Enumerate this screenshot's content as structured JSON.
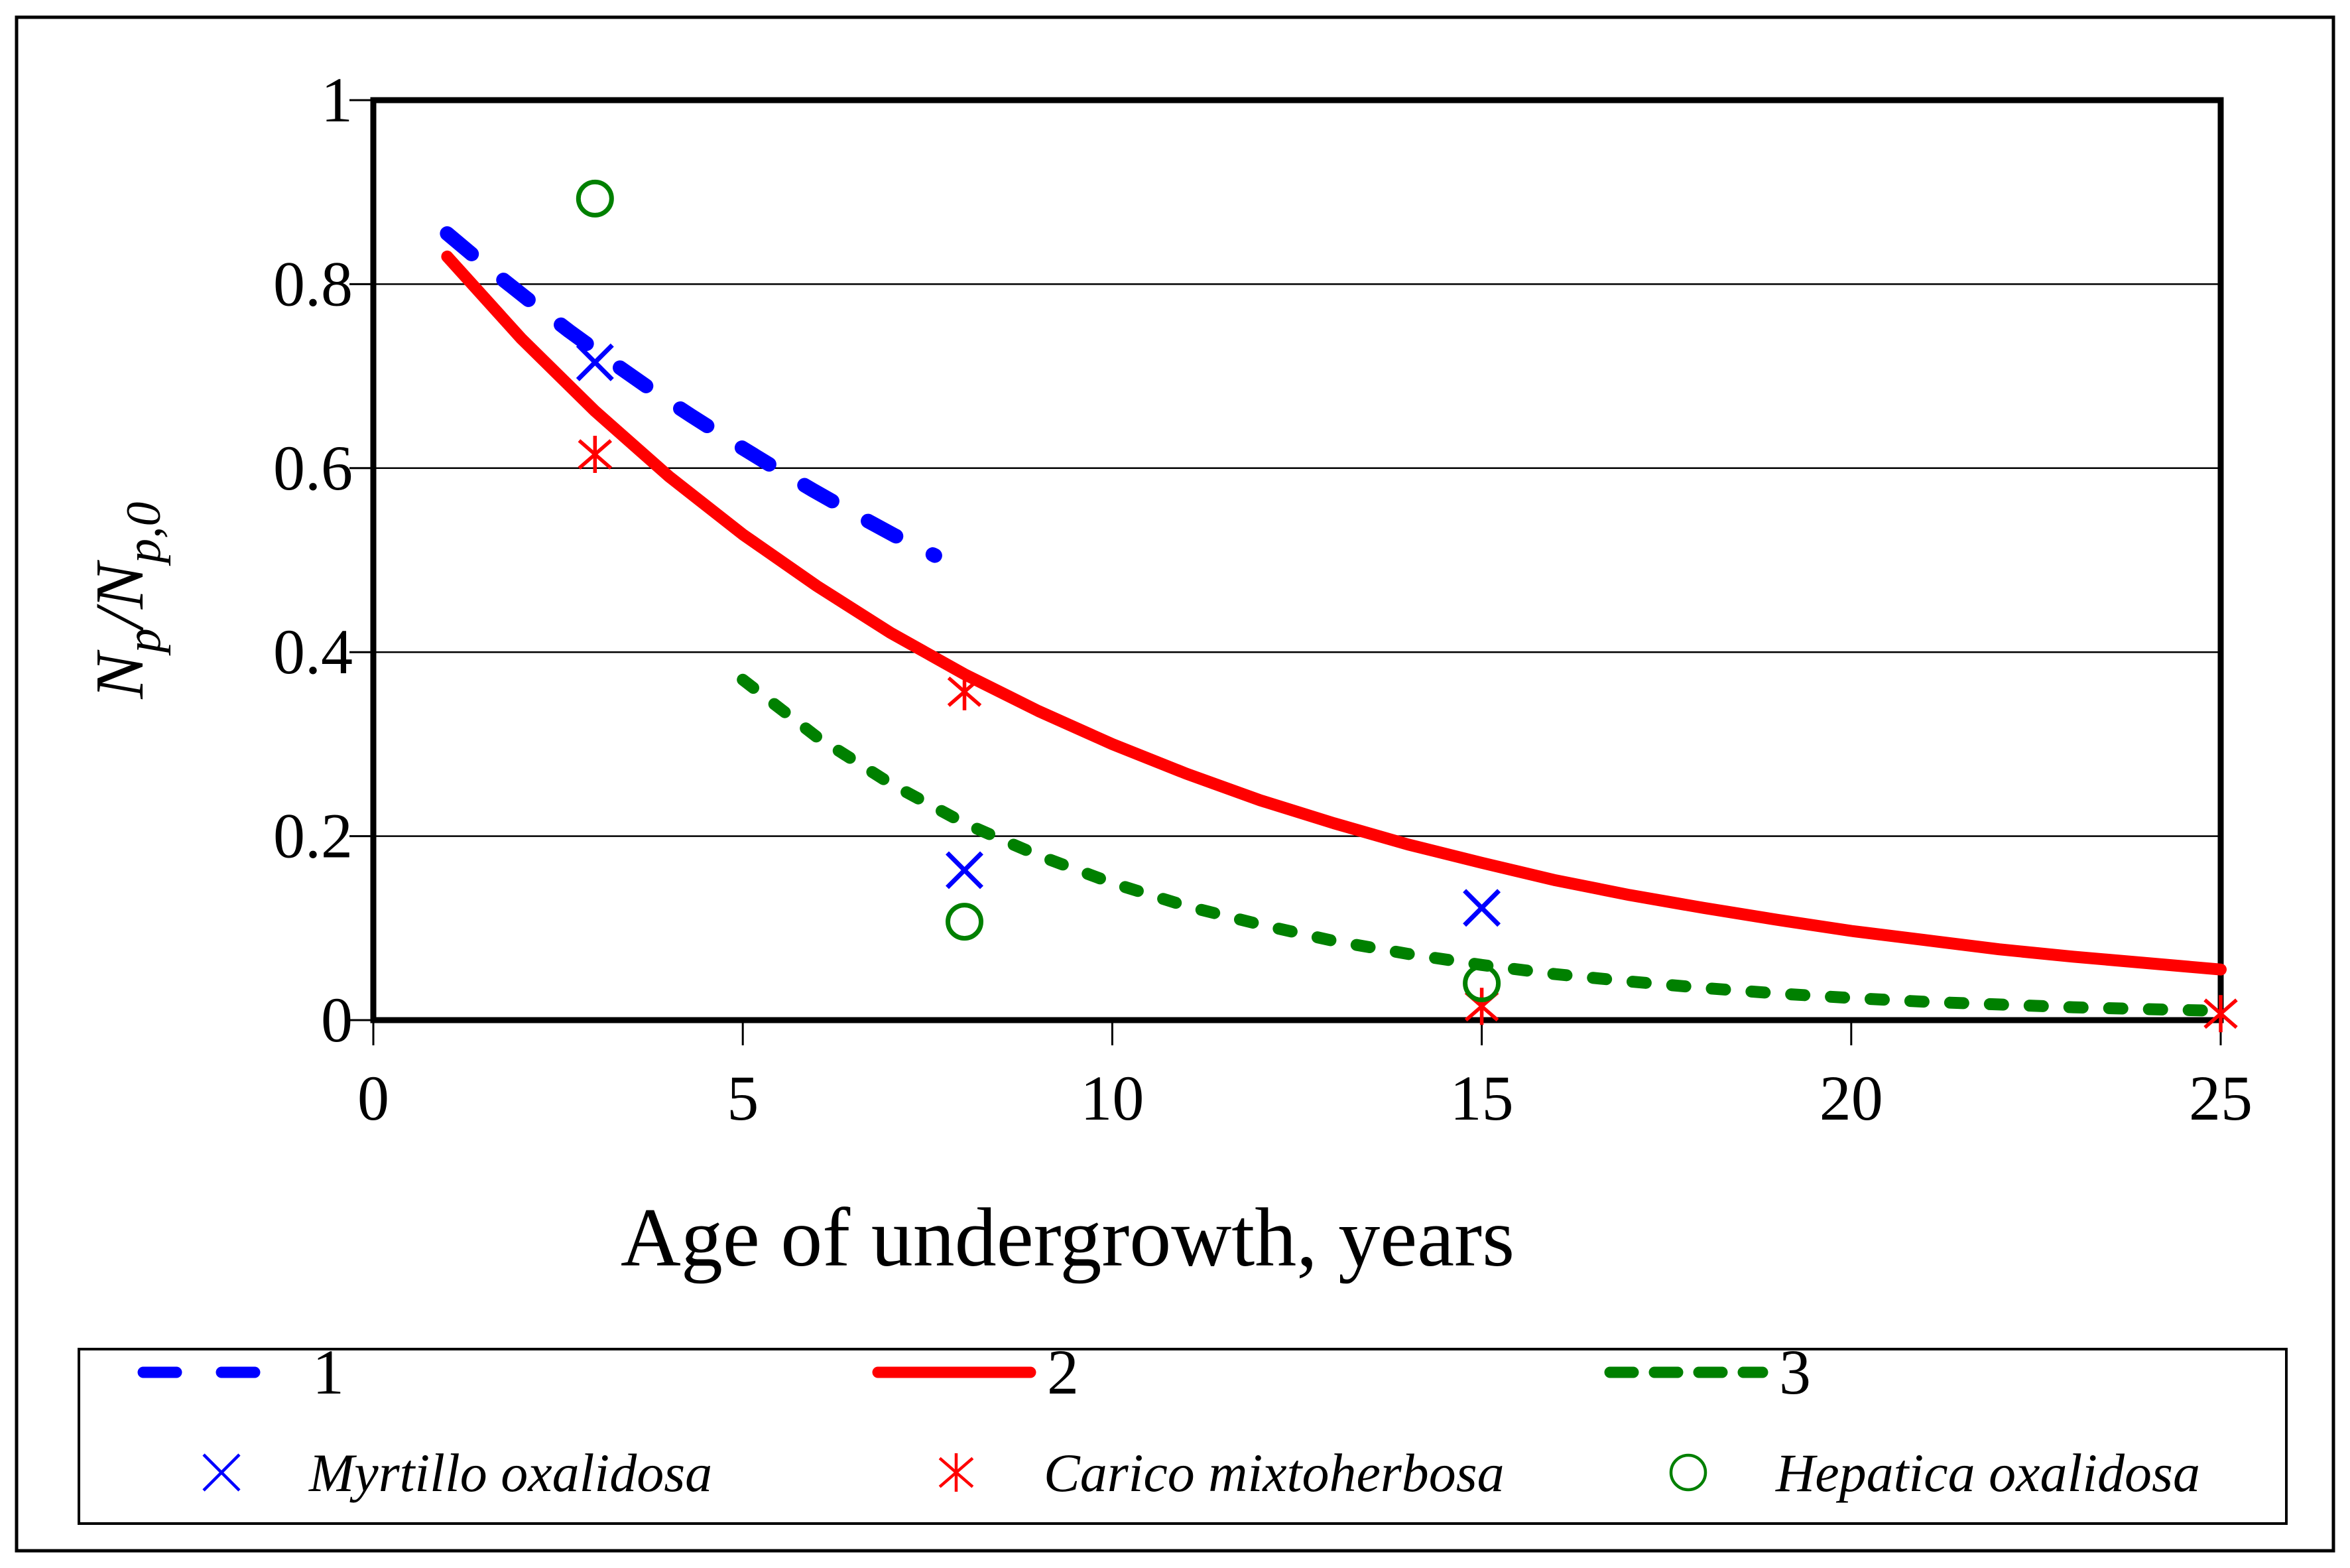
{
  "figure": {
    "background": "#ffffff",
    "border_color": "#000000"
  },
  "chart_data": {
    "type": "line",
    "title": "",
    "xlabel": "Age of undergrowth, years",
    "ylabel_plain": "Np/Np,0",
    "ylabel_rich": [
      {
        "text": "N",
        "sub": false
      },
      {
        "text": "p",
        "sub": true
      },
      {
        "text": "/N",
        "sub": false
      },
      {
        "text": "p,0",
        "sub": true
      }
    ],
    "xlim": [
      0,
      25
    ],
    "ylim": [
      0,
      1
    ],
    "xticks": [
      {
        "v": 0,
        "label": "0"
      },
      {
        "v": 5,
        "label": "5"
      },
      {
        "v": 10,
        "label": "10"
      },
      {
        "v": 15,
        "label": "15"
      },
      {
        "v": 20,
        "label": "20"
      },
      {
        "v": 25,
        "label": "25"
      }
    ],
    "yticks": [
      {
        "v": 0,
        "label": "0"
      },
      {
        "v": 0.2,
        "label": "0.2"
      },
      {
        "v": 0.4,
        "label": "0.4"
      },
      {
        "v": 0.6,
        "label": "0.6"
      },
      {
        "v": 0.8,
        "label": "0.8"
      },
      {
        "v": 1,
        "label": "1"
      }
    ],
    "grid": {
      "horizontal": true,
      "vertical": false
    },
    "legend": {
      "position": "bottom",
      "border": true
    },
    "curves": [
      {
        "id": "1",
        "label": "1",
        "color": "#0000ff",
        "style": "long-dash",
        "points": [
          [
            1,
            0.855
          ],
          [
            1.55,
            0.818
          ],
          [
            2.1,
            0.783
          ],
          [
            2.65,
            0.749
          ],
          [
            3.2,
            0.717
          ],
          [
            3.75,
            0.686
          ],
          [
            4.3,
            0.657
          ],
          [
            4.85,
            0.629
          ],
          [
            5.4,
            0.602
          ],
          [
            5.95,
            0.576
          ],
          [
            6.5,
            0.551
          ],
          [
            7.05,
            0.527
          ],
          [
            7.6,
            0.505
          ]
        ]
      },
      {
        "id": "2",
        "label": "2",
        "color": "#ff0000",
        "style": "solid",
        "points": [
          [
            1,
            0.83
          ],
          [
            2,
            0.741
          ],
          [
            3,
            0.662
          ],
          [
            4,
            0.591
          ],
          [
            5,
            0.528
          ],
          [
            6,
            0.472
          ],
          [
            7,
            0.421
          ],
          [
            8,
            0.376
          ],
          [
            9,
            0.336
          ],
          [
            10,
            0.3
          ],
          [
            11,
            0.268
          ],
          [
            12,
            0.239
          ],
          [
            13,
            0.214
          ],
          [
            14,
            0.191
          ],
          [
            15,
            0.171
          ],
          [
            16,
            0.152
          ],
          [
            17,
            0.136
          ],
          [
            18,
            0.122
          ],
          [
            19,
            0.109
          ],
          [
            20,
            0.097
          ],
          [
            21,
            0.087
          ],
          [
            22,
            0.077
          ],
          [
            23,
            0.069
          ],
          [
            24,
            0.062
          ],
          [
            25,
            0.055
          ]
        ]
      },
      {
        "id": "3",
        "label": "3",
        "color": "#008000",
        "style": "short-dash",
        "points": [
          [
            5,
            0.37
          ],
          [
            6,
            0.308
          ],
          [
            7,
            0.257
          ],
          [
            8,
            0.214
          ],
          [
            9,
            0.179
          ],
          [
            10,
            0.149
          ],
          [
            11,
            0.124
          ],
          [
            12,
            0.104
          ],
          [
            13,
            0.086
          ],
          [
            14,
            0.072
          ],
          [
            15,
            0.06
          ],
          [
            16,
            0.05
          ],
          [
            17,
            0.042
          ],
          [
            18,
            0.035
          ],
          [
            19,
            0.029
          ],
          [
            20,
            0.024
          ],
          [
            21,
            0.02
          ],
          [
            22,
            0.017
          ],
          [
            23,
            0.014
          ],
          [
            24,
            0.012
          ],
          [
            25,
            0.01
          ]
        ]
      }
    ],
    "scatter_series": [
      {
        "id": "myrtillo",
        "label": "Myrtillo oxalidosa",
        "color": "#0000ff",
        "marker": "x",
        "points": [
          [
            3,
            0.715
          ],
          [
            8,
            0.163
          ],
          [
            15,
            0.122
          ]
        ]
      },
      {
        "id": "carico",
        "label": "Carico mixtoherbosa",
        "color": "#ff0000",
        "marker": "asterisk",
        "points": [
          [
            3,
            0.615
          ],
          [
            8,
            0.357
          ],
          [
            15,
            0.015
          ],
          [
            25,
            0.007
          ]
        ]
      },
      {
        "id": "hepatica",
        "label": "Hepatica oxalidosa",
        "color": "#008000",
        "marker": "circle",
        "points": [
          [
            3,
            0.893
          ],
          [
            8,
            0.107
          ],
          [
            15,
            0.04
          ]
        ]
      }
    ]
  }
}
